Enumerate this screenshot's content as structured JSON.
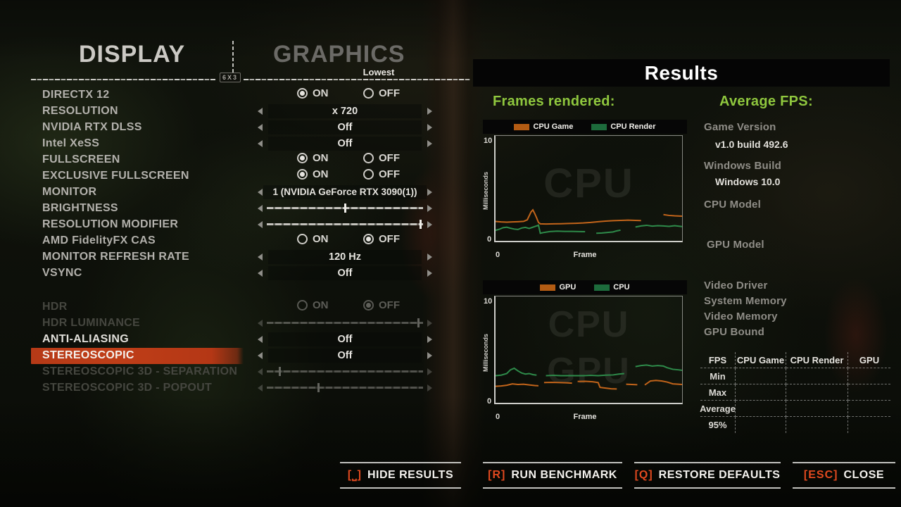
{
  "colors": {
    "highlight_red": "#bf3e18",
    "accent_orange": "#e1491f",
    "results_green": "#8fc73e",
    "chart_orange": "#c2641a",
    "chart_green": "#2e8b4a"
  },
  "display": {
    "title": "DISPLAY",
    "items": [
      {
        "label": "DIRECTX 12",
        "state": "normal"
      },
      {
        "label": "RESOLUTION",
        "state": "normal"
      },
      {
        "label": "NVIDIA RTX DLSS",
        "state": "normal"
      },
      {
        "label": "Intel XeSS",
        "state": "normal"
      },
      {
        "label": "FULLSCREEN",
        "state": "normal"
      },
      {
        "label": "EXCLUSIVE FULLSCREEN",
        "state": "normal"
      },
      {
        "label": "MONITOR",
        "state": "normal"
      },
      {
        "label": "BRIGHTNESS",
        "state": "normal"
      },
      {
        "label": "RESOLUTION MODIFIER",
        "state": "normal"
      },
      {
        "label": "AMD FidelityFX CAS",
        "state": "normal"
      },
      {
        "label": "MONITOR REFRESH RATE",
        "state": "normal"
      },
      {
        "label": "VSYNC",
        "state": "normal"
      },
      {
        "label": "HDR",
        "state": "dimmed"
      },
      {
        "label": "HDR LUMINANCE",
        "state": "dimmed"
      },
      {
        "label": "ANTI-ALIASING",
        "state": "bright"
      },
      {
        "label": "STEREOSCOPIC",
        "state": "selected"
      },
      {
        "label": "STEREOSCOPIC 3D - SEPARATION",
        "state": "dimmed"
      },
      {
        "label": "STEREOSCOPIC 3D - POPOUT",
        "state": "dimmed"
      }
    ]
  },
  "graphics": {
    "title": "GRAPHICS",
    "preset": "Lowest",
    "emblem": "6X3",
    "on_label": "ON",
    "off_label": "OFF",
    "controls": [
      {
        "setting": "DIRECTX 12",
        "type": "radio",
        "selected": "ON"
      },
      {
        "setting": "RESOLUTION",
        "type": "spinner",
        "value": "x 720"
      },
      {
        "setting": "NVIDIA RTX DLSS",
        "type": "spinner",
        "value": "Off"
      },
      {
        "setting": "Intel XeSS",
        "type": "spinner",
        "value": "Off"
      },
      {
        "setting": "FULLSCREEN",
        "type": "radio",
        "selected": "ON"
      },
      {
        "setting": "EXCLUSIVE FULLSCREEN",
        "type": "radio",
        "selected": "ON"
      },
      {
        "setting": "MONITOR",
        "type": "spinner",
        "value": "1 (NVIDIA GeForce RTX 3090(1))"
      },
      {
        "setting": "BRIGHTNESS",
        "type": "slider",
        "percent": 50
      },
      {
        "setting": "RESOLUTION MODIFIER",
        "type": "slider",
        "percent": 98
      },
      {
        "setting": "AMD FidelityFX CAS",
        "type": "radio",
        "selected": "OFF"
      },
      {
        "setting": "MONITOR REFRESH RATE",
        "type": "spinner",
        "value": "120 Hz"
      },
      {
        "setting": "VSYNC",
        "type": "spinner",
        "value": "Off"
      },
      {
        "setting": "HDR",
        "type": "radio",
        "selected": "OFF",
        "dimmed": true
      },
      {
        "setting": "HDR LUMINANCE",
        "type": "slider",
        "percent": 97,
        "dimmed": true
      },
      {
        "setting": "ANTI-ALIASING",
        "type": "spinner",
        "value": "Off"
      },
      {
        "setting": "STEREOSCOPIC 3D",
        "type": "spinner",
        "value": "Off"
      },
      {
        "setting": "STEREOSCOPIC 3D - SEPARATION",
        "type": "slider",
        "percent": 8,
        "dimmed": true
      },
      {
        "setting": "STEREOSCOPIC 3D - POPOUT",
        "type": "slider",
        "percent": 33,
        "dimmed": true
      }
    ]
  },
  "results": {
    "title": "Results",
    "frames_title": "Frames rendered:",
    "avg_title": "Average FPS:",
    "info": [
      {
        "label": "Game Version",
        "value": "v1.0 build 492.6"
      },
      {
        "label": "Windows Build",
        "value": "Windows 10.0"
      },
      {
        "label": "CPU Model",
        "value": ""
      },
      {
        "label": "GPU Model",
        "value": ""
      },
      {
        "label": "Video Driver",
        "value": ""
      },
      {
        "label": "System Memory",
        "value": ""
      },
      {
        "label": "Video Memory",
        "value": ""
      },
      {
        "label": "GPU Bound",
        "value": ""
      }
    ],
    "table": {
      "col_headers": [
        "FPS",
        "CPU Game",
        "CPU Render",
        "GPU"
      ],
      "row_headers": [
        "Min",
        "Max",
        "Average",
        "95%"
      ],
      "values": [
        [
          "",
          "",
          ""
        ],
        [
          "",
          "",
          ""
        ],
        [
          "",
          "",
          ""
        ],
        [
          "",
          "",
          ""
        ]
      ]
    }
  },
  "chart_data": [
    {
      "type": "line",
      "title": "",
      "xlabel": "Frame",
      "ylabel": "Milliseconds",
      "ylim": [
        0,
        10
      ],
      "ytick_top": "10",
      "ytick_bottom": "0",
      "xtick_origin": "0",
      "grid": false,
      "legend_position": "top",
      "watermarks": [
        "CPU"
      ],
      "series": [
        {
          "name": "CPU Game",
          "color": "#c2641a",
          "segments": [
            [
              [
                0,
                1.85
              ],
              [
                3,
                1.8
              ],
              [
                6,
                1.78
              ],
              [
                9,
                1.8
              ],
              [
                12,
                1.82
              ],
              [
                15,
                1.85
              ],
              [
                17,
                2.0
              ],
              [
                19,
                2.75
              ],
              [
                20,
                2.95
              ],
              [
                21,
                2.6
              ],
              [
                22,
                2.2
              ],
              [
                23,
                1.75
              ],
              [
                24,
                1.62
              ],
              [
                27,
                1.6
              ],
              [
                31,
                1.62
              ],
              [
                35,
                1.63
              ],
              [
                39,
                1.65
              ],
              [
                43,
                1.67
              ],
              [
                47,
                1.7
              ],
              [
                51,
                1.75
              ],
              [
                55,
                1.82
              ],
              [
                59,
                1.88
              ],
              [
                63,
                1.92
              ],
              [
                67,
                1.95
              ],
              [
                71,
                1.97
              ],
              [
                75,
                1.95
              ],
              [
                78,
                1.93
              ]
            ],
            [
              [
                90,
                2.5
              ],
              [
                93,
                2.42
              ],
              [
                96,
                2.38
              ],
              [
                100,
                2.35
              ]
            ]
          ]
        },
        {
          "name": "CPU Render",
          "color": "#2e8b4a",
          "segments": [
            [
              [
                0,
                1.0
              ],
              [
                2,
                1.1
              ],
              [
                4,
                1.25
              ],
              [
                6,
                1.3
              ],
              [
                8,
                1.2
              ],
              [
                10,
                1.12
              ],
              [
                12,
                1.08
              ],
              [
                14,
                1.22
              ],
              [
                16,
                1.28
              ],
              [
                18,
                1.18
              ],
              [
                20,
                1.3
              ],
              [
                22,
                1.42
              ],
              [
                23,
                1.5
              ],
              [
                24,
                0.72
              ],
              [
                26,
                0.8
              ],
              [
                29,
                0.88
              ],
              [
                33,
                0.92
              ],
              [
                37,
                0.9
              ],
              [
                41,
                0.9
              ],
              [
                45,
                0.88
              ],
              [
                48,
                0.87
              ]
            ],
            [
              [
                54,
                0.72
              ],
              [
                57,
                0.75
              ],
              [
                60,
                0.8
              ],
              [
                63,
                0.85
              ],
              [
                65,
                0.95
              ],
              [
                67,
                1.02
              ]
            ],
            [
              [
                75,
                1.32
              ],
              [
                78,
                1.42
              ],
              [
                81,
                1.48
              ],
              [
                84,
                1.4
              ],
              [
                87,
                1.44
              ],
              [
                90,
                1.42
              ],
              [
                93,
                1.38
              ],
              [
                96,
                1.44
              ],
              [
                100,
                1.36
              ]
            ]
          ]
        }
      ]
    },
    {
      "type": "line",
      "title": "",
      "xlabel": "Frame",
      "ylabel": "Milliseconds",
      "ylim": [
        0,
        10
      ],
      "ytick_top": "10",
      "ytick_bottom": "0",
      "xtick_origin": "0",
      "grid": false,
      "legend_position": "top",
      "watermarks": [
        "CPU",
        "GPU"
      ],
      "series": [
        {
          "name": "GPU",
          "color": "#c2641a",
          "segments": [
            [
              [
                0,
                1.55
              ],
              [
                3,
                1.58
              ],
              [
                6,
                1.65
              ],
              [
                9,
                1.78
              ],
              [
                12,
                1.72
              ],
              [
                15,
                1.75
              ],
              [
                18,
                1.68
              ],
              [
                21,
                1.62
              ],
              [
                23,
                1.6
              ]
            ],
            [
              [
                26,
                1.9
              ],
              [
                30,
                1.92
              ],
              [
                34,
                1.9
              ],
              [
                38,
                1.88
              ],
              [
                41,
                1.85
              ]
            ],
            [
              [
                44,
                2.0
              ],
              [
                48,
                2.02
              ],
              [
                52,
                1.98
              ],
              [
                55,
                1.9
              ],
              [
                56,
                1.45
              ],
              [
                59,
                1.38
              ],
              [
                62,
                1.32
              ],
              [
                65,
                1.3
              ]
            ],
            [
              [
                70,
                1.75
              ],
              [
                73,
                1.72
              ],
              [
                76,
                1.7
              ]
            ],
            [
              [
                80,
                1.68
              ],
              [
                83,
                2.05
              ],
              [
                86,
                2.1
              ],
              [
                89,
                2.05
              ],
              [
                92,
                1.95
              ],
              [
                95,
                1.78
              ],
              [
                98,
                1.75
              ],
              [
                100,
                1.72
              ]
            ]
          ]
        },
        {
          "name": "CPU",
          "color": "#2e8b4a",
          "segments": [
            [
              [
                0,
                2.55
              ],
              [
                3,
                2.6
              ],
              [
                6,
                2.75
              ],
              [
                8,
                3.1
              ],
              [
                10,
                3.25
              ],
              [
                12,
                3.0
              ],
              [
                14,
                2.8
              ],
              [
                16,
                2.7
              ],
              [
                18,
                2.75
              ],
              [
                20,
                2.65
              ],
              [
                22,
                2.6
              ]
            ],
            [
              [
                27,
                2.55
              ],
              [
                31,
                2.58
              ],
              [
                35,
                2.55
              ],
              [
                39,
                2.56
              ],
              [
                43,
                2.55
              ],
              [
                47,
                2.55
              ],
              [
                51,
                2.58
              ],
              [
                55,
                2.55
              ],
              [
                59,
                2.6
              ],
              [
                63,
                2.62
              ],
              [
                66,
                2.7
              ],
              [
                69,
                2.75
              ]
            ],
            [
              [
                75,
                3.4
              ],
              [
                78,
                3.5
              ],
              [
                81,
                3.55
              ],
              [
                84,
                3.45
              ],
              [
                87,
                3.5
              ],
              [
                90,
                3.45
              ],
              [
                92,
                3.3
              ],
              [
                95,
                3.15
              ],
              [
                98,
                3.1
              ],
              [
                100,
                3.05
              ]
            ]
          ]
        }
      ]
    }
  ],
  "footer": {
    "buttons": [
      {
        "key": "[⎵]",
        "label": "HIDE RESULTS"
      },
      {
        "key": "[R]",
        "label": "RUN BENCHMARK"
      },
      {
        "key": "[Q]",
        "label": "RESTORE DEFAULTS"
      },
      {
        "key": "[ESC]",
        "label": "CLOSE"
      }
    ]
  }
}
